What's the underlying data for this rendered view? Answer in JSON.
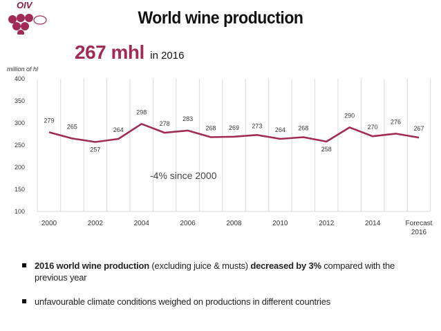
{
  "logo": {
    "text": "OIV"
  },
  "title": "World wine production",
  "headline": {
    "value": "267 mhl",
    "suffix": "in 2016"
  },
  "unit_label": "million of hl",
  "colors": {
    "accent": "#a12b56",
    "line": "#a12b56",
    "grid": "#d9d9d9",
    "axis_text": "#333333"
  },
  "chart_data": {
    "type": "line",
    "title": "",
    "xlabel": "",
    "ylabel": "million of hl",
    "ylim": [
      100,
      400
    ],
    "yticks": [
      100,
      150,
      200,
      250,
      300,
      350,
      400
    ],
    "x": [
      2000,
      2001,
      2002,
      2003,
      2004,
      2005,
      2006,
      2007,
      2008,
      2009,
      2010,
      2011,
      2012,
      2013,
      2014,
      2015,
      2016
    ],
    "x_tick_labels": [
      {
        "index": 0,
        "label": "2000"
      },
      {
        "index": 2,
        "label": "2002"
      },
      {
        "index": 4,
        "label": "2004"
      },
      {
        "index": 6,
        "label": "2006"
      },
      {
        "index": 8,
        "label": "2008"
      },
      {
        "index": 10,
        "label": "2010"
      },
      {
        "index": 12,
        "label": "2012"
      },
      {
        "index": 14,
        "label": "2014"
      },
      {
        "index": 16,
        "label": "Forecast 2016"
      }
    ],
    "series": [
      {
        "name": "World wine production",
        "values": [
          279,
          265,
          257,
          264,
          298,
          278,
          283,
          268,
          269,
          273,
          264,
          268,
          258,
          290,
          270,
          276,
          267
        ]
      }
    ],
    "annotation": "-4% since 2000",
    "grid": "vertical"
  },
  "bullets": [
    {
      "bold": "2016 world wine production",
      "text1": " (excluding juice & musts) ",
      "bold2": "decreased by 3%",
      "text2": " compared with the previous year"
    },
    {
      "text": "unfavourable climate conditions weighed on productions in different countries"
    }
  ]
}
